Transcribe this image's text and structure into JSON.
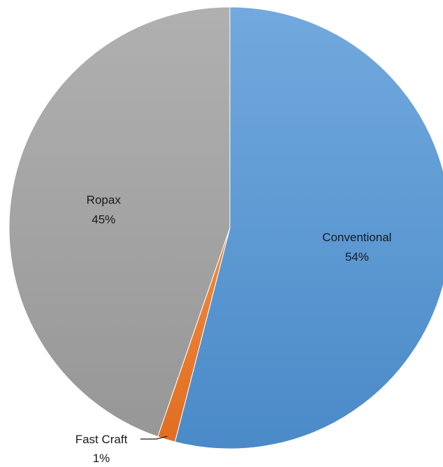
{
  "chart_data": {
    "type": "pie",
    "categories": [
      "Conventional",
      "Fast Craft",
      "Ropax"
    ],
    "values": [
      54,
      1.3,
      44.7
    ],
    "data_labels": {
      "Conventional": {
        "name": "Conventional",
        "percent": "54%"
      },
      "Fast Craft": {
        "name": "Fast Craft",
        "percent": "1%"
      },
      "Ropax": {
        "name": "Ropax",
        "percent": "45%"
      }
    },
    "colors": {
      "Conventional": "#5b9bd5",
      "Fast Craft": "#ed7d31",
      "Ropax": "#a5a5a5"
    },
    "start_angle": "12 o'clock",
    "direction": "clockwise",
    "legend": "none",
    "title": ""
  }
}
